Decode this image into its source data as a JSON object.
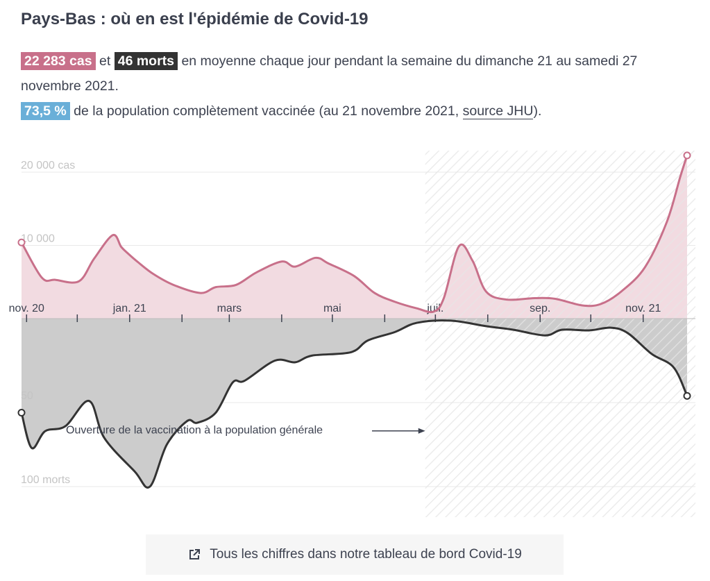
{
  "title": "Pays-Bas : où en est l'épidémie de Covid-19",
  "intro": {
    "cases_badge": "22 283 cas",
    "and": "et",
    "deaths_badge": "46 morts",
    "sentence": "en moyenne chaque jour pendant la semaine du dimanche 21 au samedi 27 novembre 2021.",
    "vax_badge": "73,5 %",
    "vax_text": "de la population complètement vaccinée (au 21 novembre 2021,",
    "source_link": "source JHU",
    "vax_end": ")."
  },
  "footer": {
    "icon": "external-link-icon",
    "label": "Tous les chiffres dans notre tableau de bord Covid-19"
  },
  "chart_data": {
    "type": "bar+line",
    "x_range": [
      "2020-10-29",
      "2021-11-27"
    ],
    "x_ticks": [
      "2020-11-01",
      "2020-12-01",
      "2021-01-01",
      "2021-02-01",
      "2021-03-01",
      "2021-04-01",
      "2021-05-01",
      "2021-06-01",
      "2021-07-01",
      "2021-08-01",
      "2021-09-01",
      "2021-10-01",
      "2021-11-01"
    ],
    "x_tick_labels": {
      "2020-11-01": "nov. 20",
      "2021-01-01": "jan. 21",
      "2021-03-01": "mars",
      "2021-05-01": "mai",
      "2021-07-01": "juil.",
      "2021-09-01": "sep.",
      "2021-11-01": "nov. 21"
    },
    "cases_axis": {
      "ticks": [
        10000,
        20000
      ],
      "labels": [
        "10 000",
        "20 000 cas"
      ],
      "ylim": [
        0,
        22500
      ]
    },
    "deaths_axis": {
      "ticks": [
        50,
        100
      ],
      "labels": [
        "50",
        "100 morts"
      ],
      "ylim": [
        0,
        118
      ],
      "direction": "downward"
    },
    "colors": {
      "cases": "#c8708a",
      "cases_bars": "#f2dbe1",
      "deaths": "#333333",
      "deaths_bars": "#cccccc"
    },
    "series": [
      {
        "name": "cas",
        "kind": "7-day average",
        "points": [
          [
            "2020-10-29",
            10400
          ],
          [
            "2020-11-10",
            5600
          ],
          [
            "2020-11-18",
            5300
          ],
          [
            "2020-12-02",
            5100
          ],
          [
            "2020-12-11",
            8200
          ],
          [
            "2020-12-22",
            11400
          ],
          [
            "2020-12-27",
            9800
          ],
          [
            "2020-12-31",
            8900
          ],
          [
            "2021-01-06",
            7700
          ],
          [
            "2021-01-15",
            6100
          ],
          [
            "2021-01-27",
            4600
          ],
          [
            "2021-02-12",
            3500
          ],
          [
            "2021-02-21",
            4300
          ],
          [
            "2021-03-05",
            4600
          ],
          [
            "2021-03-17",
            6300
          ],
          [
            "2021-04-01",
            7800
          ],
          [
            "2021-04-09",
            7100
          ],
          [
            "2021-04-21",
            8300
          ],
          [
            "2021-04-29",
            7500
          ],
          [
            "2021-05-14",
            5800
          ],
          [
            "2021-05-26",
            3500
          ],
          [
            "2021-06-07",
            2300
          ],
          [
            "2021-06-20",
            1400
          ],
          [
            "2021-06-30",
            950
          ],
          [
            "2021-07-06",
            2800
          ],
          [
            "2021-07-15",
            9900
          ],
          [
            "2021-07-23",
            7900
          ],
          [
            "2021-07-31",
            3700
          ],
          [
            "2021-08-12",
            2600
          ],
          [
            "2021-08-29",
            2800
          ],
          [
            "2021-09-10",
            2700
          ],
          [
            "2021-09-26",
            1800
          ],
          [
            "2021-10-07",
            2000
          ],
          [
            "2021-10-19",
            3700
          ],
          [
            "2021-11-02",
            7000
          ],
          [
            "2021-11-15",
            13200
          ],
          [
            "2021-11-23",
            19400
          ],
          [
            "2021-11-27",
            22283
          ]
        ]
      },
      {
        "name": "morts",
        "kind": "7-day average",
        "points": [
          [
            "2020-10-29",
            56
          ],
          [
            "2020-11-04",
            77
          ],
          [
            "2020-11-12",
            67
          ],
          [
            "2020-11-24",
            64
          ],
          [
            "2020-12-08",
            49
          ],
          [
            "2020-12-17",
            71
          ],
          [
            "2021-01-04",
            91
          ],
          [
            "2021-01-13",
            100
          ],
          [
            "2021-01-23",
            75
          ],
          [
            "2021-02-04",
            61
          ],
          [
            "2021-02-10",
            62
          ],
          [
            "2021-02-21",
            56
          ],
          [
            "2021-03-03",
            38
          ],
          [
            "2021-03-10",
            37
          ],
          [
            "2021-03-28",
            25
          ],
          [
            "2021-04-09",
            26
          ],
          [
            "2021-04-19",
            22
          ],
          [
            "2021-05-12",
            20
          ],
          [
            "2021-05-22",
            13
          ],
          [
            "2021-06-07",
            8
          ],
          [
            "2021-06-20",
            2.5
          ],
          [
            "2021-07-10",
            1.2
          ],
          [
            "2021-07-31",
            4.5
          ],
          [
            "2021-08-16",
            6.6
          ],
          [
            "2021-09-04",
            10
          ],
          [
            "2021-09-14",
            6.6
          ],
          [
            "2021-09-30",
            7
          ],
          [
            "2021-10-13",
            5.4
          ],
          [
            "2021-10-23",
            8.7
          ],
          [
            "2021-11-06",
            21
          ],
          [
            "2021-11-19",
            29
          ],
          [
            "2021-11-27",
            46
          ]
        ]
      }
    ],
    "shaded_period_start": "2021-06-25",
    "annotation": {
      "text": "Ouverture de la vaccination à la population générale",
      "date": "2021-06-25",
      "deaths_value": 66
    }
  }
}
